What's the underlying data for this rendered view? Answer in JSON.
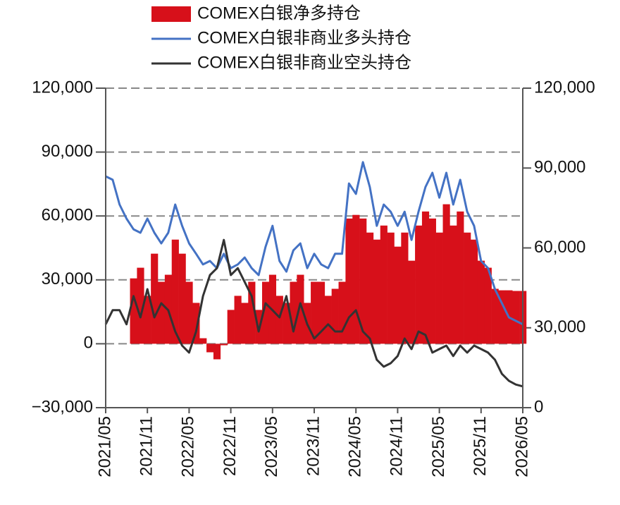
{
  "chart_data": {
    "type": "bar",
    "categories": [
      "2021/05",
      null,
      null,
      null,
      null,
      null,
      "2021/11",
      null,
      null,
      null,
      null,
      null,
      "2022/05",
      null,
      null,
      null,
      null,
      null,
      "2022/11",
      null,
      null,
      null,
      null,
      null,
      "2023/05",
      null,
      null,
      null,
      null,
      null,
      "2023/11",
      null,
      null,
      null,
      null,
      null,
      "2024/05",
      null,
      null,
      null,
      null,
      null,
      "2024/11",
      null,
      null,
      null,
      null,
      null,
      "2025/05",
      null,
      null,
      null,
      null,
      null,
      "2025/11",
      null,
      null,
      null,
      null,
      null,
      "2026/05"
    ],
    "series": [
      {
        "name": "COMEX白银净多持仓",
        "type": "bar",
        "color": "#d7101a",
        "axis": "y",
        "values": [
          null,
          null,
          null,
          null,
          30700,
          35700,
          22500,
          42300,
          29100,
          32400,
          48900,
          42300,
          29100,
          19200,
          2600,
          -4000,
          -7300,
          -700,
          15900,
          22500,
          19200,
          29100,
          15900,
          29100,
          32400,
          22500,
          19200,
          29100,
          32400,
          19200,
          29100,
          29100,
          22500,
          25800,
          29100,
          58800,
          60500,
          58800,
          52200,
          48900,
          55500,
          52200,
          45600,
          52200,
          39000,
          55500,
          62100,
          58800,
          52200,
          65500,
          55500,
          62100,
          52200,
          48900,
          39000,
          35700,
          25800,
          25100,
          25100,
          24800,
          24800
        ]
      },
      {
        "name": "COMEX白银非商业多头持仓",
        "type": "line",
        "color": "#4472c4",
        "axis": "y2",
        "values": [
          86900,
          85600,
          76300,
          71000,
          67000,
          65700,
          71000,
          65700,
          61700,
          65700,
          76300,
          68300,
          61700,
          57800,
          53800,
          55100,
          52400,
          57800,
          52400,
          53800,
          56400,
          52400,
          49800,
          60400,
          68300,
          55100,
          51100,
          59100,
          61700,
          52400,
          57800,
          53800,
          52400,
          57800,
          57800,
          84200,
          80300,
          92200,
          82900,
          68300,
          76300,
          73600,
          68300,
          73600,
          63000,
          73600,
          82900,
          88200,
          78900,
          88200,
          76300,
          85600,
          73600,
          68300,
          55100,
          52400,
          44500,
          39200,
          33900,
          32600,
          31300
        ]
      },
      {
        "name": "COMEX白银非商业空头持仓",
        "type": "line",
        "color": "#333333",
        "axis": "y2",
        "values": [
          31300,
          36600,
          36600,
          31300,
          41900,
          33900,
          44500,
          33900,
          39200,
          36600,
          28600,
          23300,
          20700,
          28600,
          41900,
          49800,
          52400,
          63000,
          49800,
          52400,
          47200,
          41900,
          28600,
          39200,
          36600,
          33900,
          41900,
          28600,
          39200,
          31300,
          26000,
          28600,
          31300,
          28600,
          28600,
          33900,
          36600,
          28600,
          26000,
          18000,
          15400,
          16700,
          19400,
          26000,
          22000,
          28600,
          27300,
          20700,
          22000,
          23300,
          19400,
          23300,
          20700,
          23300,
          22000,
          20700,
          18000,
          12700,
          10100,
          8700,
          8000
        ]
      }
    ],
    "ylim": [
      -30000,
      120000
    ],
    "yticks": [
      {
        "value": -30000,
        "label": "−30,000"
      },
      0,
      {
        "value": 30000,
        "label": "30,000"
      },
      {
        "value": 60000,
        "label": "60,000"
      },
      {
        "value": 90000,
        "label": "90,000"
      },
      {
        "value": 120000,
        "label": "120,000"
      }
    ],
    "y2lim": [
      0,
      120000
    ],
    "y2ticks": [
      0,
      {
        "value": 30000,
        "label": "30,000"
      },
      {
        "value": 60000,
        "label": "60,000"
      },
      {
        "value": 90000,
        "label": "90,000"
      },
      {
        "value": 120000,
        "label": "120,000"
      }
    ],
    "grid": true
  }
}
